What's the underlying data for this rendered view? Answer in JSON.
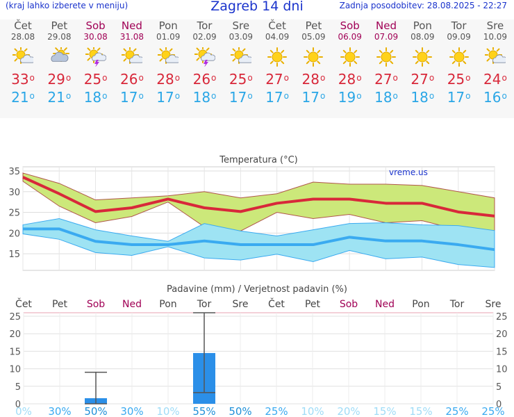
{
  "header": {
    "menu_hint": "(kraj lahko izberete v meniju)",
    "title": "Zagreb 14 dni",
    "updated": "Zadnja posodobitev: 28.08.2025 - 22:27"
  },
  "forecast": {
    "days": [
      {
        "name": "Čet",
        "date": "28.08",
        "weekend": false,
        "icon": "sun-cloud-icon",
        "tmax": "33",
        "tmin": "21"
      },
      {
        "name": "Pet",
        "date": "29.08",
        "weekend": false,
        "icon": "cloudy-sun-icon",
        "tmax": "29",
        "tmin": "21"
      },
      {
        "name": "Sob",
        "date": "30.08",
        "weekend": true,
        "icon": "thunderstorm-icon",
        "tmax": "25",
        "tmin": "18"
      },
      {
        "name": "Ned",
        "date": "31.08",
        "weekend": true,
        "icon": "sun-cloud-icon",
        "tmax": "26",
        "tmin": "17"
      },
      {
        "name": "Pon",
        "date": "01.09",
        "weekend": false,
        "icon": "sun-cloud-icon",
        "tmax": "28",
        "tmin": "17"
      },
      {
        "name": "Tor",
        "date": "02.09",
        "weekend": false,
        "icon": "thunderstorm-icon",
        "tmax": "26",
        "tmin": "18"
      },
      {
        "name": "Sre",
        "date": "03.09",
        "weekend": false,
        "icon": "sun-cloud-icon",
        "tmax": "25",
        "tmin": "17"
      },
      {
        "name": "Čet",
        "date": "04.09",
        "weekend": false,
        "icon": "sun-icon",
        "tmax": "27",
        "tmin": "17"
      },
      {
        "name": "Pet",
        "date": "05.09",
        "weekend": false,
        "icon": "sun-icon",
        "tmax": "28",
        "tmin": "17"
      },
      {
        "name": "Sob",
        "date": "06.09",
        "weekend": true,
        "icon": "sun-icon",
        "tmax": "28",
        "tmin": "19"
      },
      {
        "name": "Ned",
        "date": "07.09",
        "weekend": true,
        "icon": "sun-icon",
        "tmax": "27",
        "tmin": "18"
      },
      {
        "name": "Pon",
        "date": "08.09",
        "weekend": false,
        "icon": "sun-icon",
        "tmax": "27",
        "tmin": "18"
      },
      {
        "name": "Tor",
        "date": "09.09",
        "weekend": false,
        "icon": "sun-icon",
        "tmax": "25",
        "tmin": "17"
      },
      {
        "name": "Sre",
        "date": "10.09",
        "weekend": false,
        "icon": "sun-cloud-icon",
        "tmax": "24",
        "tmin": "16"
      }
    ]
  },
  "chart_data": [
    {
      "type": "area",
      "title": "Temperatura (°C)",
      "watermark": "vreme.us",
      "categories": [
        "28.08",
        "29.08",
        "30.08",
        "31.08",
        "01.09",
        "02.09",
        "03.09",
        "04.09",
        "05.09",
        "06.09",
        "07.09",
        "08.09",
        "09.09",
        "10.09"
      ],
      "ylim": [
        11,
        36
      ],
      "yticks": [
        15,
        20,
        25,
        30,
        35
      ],
      "grid": true,
      "colors": {
        "max_line": "#d8283a",
        "max_band": "#cce87a",
        "min_line": "#3aaaf0",
        "min_band": "#9ee3f3"
      },
      "series": [
        {
          "key": "max_upper",
          "values": [
            34.5,
            32,
            28,
            28.5,
            29,
            30,
            28.5,
            29.5,
            32.3,
            31.8,
            31.8,
            31.5,
            30,
            28.5
          ]
        },
        {
          "key": "max",
          "values": [
            33.5,
            29.5,
            25.2,
            26.1,
            28.2,
            26.1,
            25.2,
            27.2,
            28.2,
            28.2,
            27.2,
            27.2,
            25.1,
            24.1
          ]
        },
        {
          "key": "max_lower",
          "values": [
            32.5,
            26.5,
            22.5,
            24,
            27.5,
            21.5,
            20.5,
            25,
            23.5,
            24.5,
            22.5,
            23,
            20.8,
            20.2
          ]
        },
        {
          "key": "min_upper",
          "values": [
            22,
            23.5,
            20.8,
            19.3,
            18,
            22.3,
            20.5,
            19.3,
            20.8,
            22.3,
            22.5,
            22,
            21.8,
            20.6
          ]
        },
        {
          "key": "min",
          "values": [
            21,
            21,
            18,
            17.2,
            17.2,
            18.1,
            17.2,
            17.2,
            17.2,
            19,
            18.1,
            18.1,
            17.2,
            16
          ]
        },
        {
          "key": "min_lower",
          "values": [
            19.8,
            18.5,
            15.3,
            14.6,
            16.7,
            14,
            13.5,
            14.9,
            13.1,
            15.8,
            13.8,
            14.2,
            12.4,
            11.7
          ]
        }
      ]
    },
    {
      "type": "bar",
      "title": "Padavine (mm) / Verjetnost padavin (%)",
      "categories": [
        "Čet",
        "Pet",
        "Sob",
        "Ned",
        "Pon",
        "Tor",
        "Sre",
        "Čet",
        "Pet",
        "Sob",
        "Ned",
        "Pon",
        "Tor",
        "Sre"
      ],
      "weekend": [
        false,
        false,
        true,
        true,
        false,
        false,
        false,
        false,
        false,
        true,
        true,
        false,
        false,
        false
      ],
      "ylim": [
        0,
        26
      ],
      "yticks": [
        0,
        5,
        10,
        15,
        20,
        25
      ],
      "precip_mm": [
        0,
        0,
        1.6,
        0,
        0,
        14.5,
        0,
        0,
        0,
        0,
        0,
        0,
        0,
        0
      ],
      "error_low": [
        null,
        null,
        0,
        null,
        null,
        3.2,
        null,
        null,
        null,
        null,
        null,
        null,
        null,
        null
      ],
      "error_high": [
        null,
        null,
        9,
        null,
        null,
        26,
        null,
        null,
        null,
        null,
        null,
        null,
        null,
        null
      ],
      "probability": [
        "0%",
        "30%",
        "50%",
        "30%",
        "10%",
        "55%",
        "50%",
        "25%",
        "10%",
        "20%",
        "15%",
        "15%",
        "25%",
        "25%"
      ],
      "colors": {
        "bar": "#2b8fe8",
        "whisker": "#555555",
        "label_low": "#9fdcf7",
        "label_mid": "#3aaaf0",
        "label_high": "#1f90d8",
        "weekday": "#444444",
        "weekend": "#a00055"
      }
    }
  ]
}
